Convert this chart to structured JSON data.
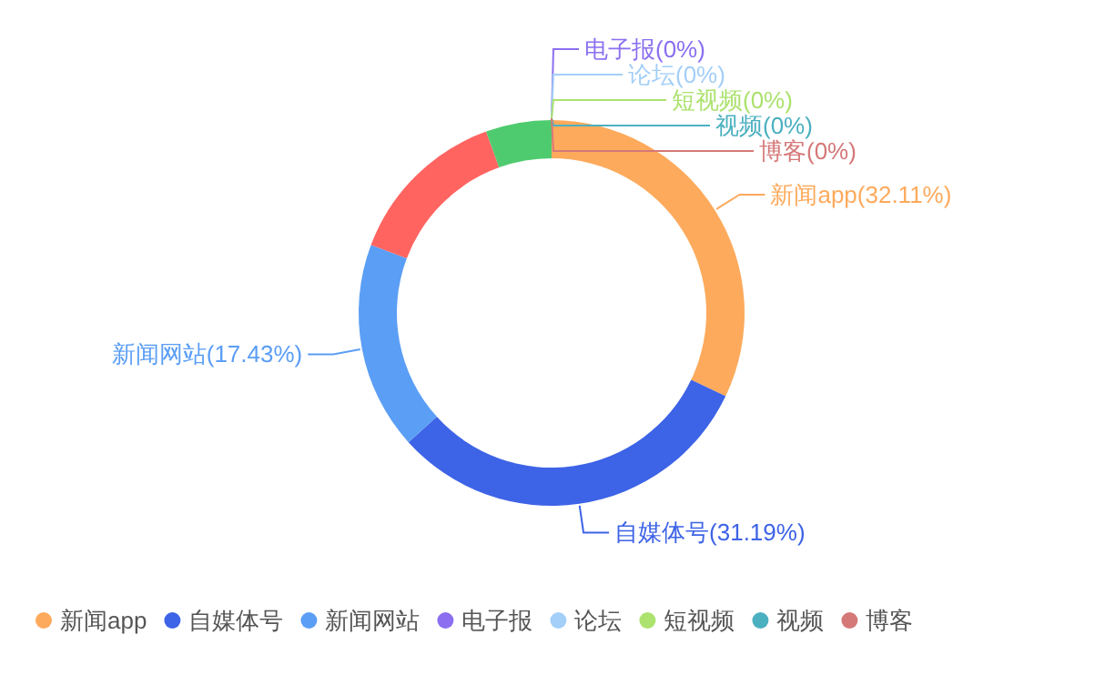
{
  "chart_data": {
    "type": "donut",
    "categories": [
      "新闻app",
      "自媒体号",
      "新闻网站",
      null,
      null,
      "电子报",
      "论坛",
      "短视频",
      "视频",
      "博客"
    ],
    "values": [
      32.11,
      31.19,
      17.43,
      13.76,
      5.51,
      0,
      0,
      0,
      0,
      0
    ],
    "colors": [
      "#fdaa5c",
      "#3d63e6",
      "#5b9ef5",
      "#ff6461",
      "#4fcb6f",
      "#8b6ff0",
      "#a3cff8",
      "#ace26e",
      "#4bb0c0",
      "#d57878"
    ],
    "value_labels": [
      "新闻app(32.11%)",
      "自媒体号(31.19%)",
      "新闻网站(17.43%)",
      null,
      null,
      "电子报(0%)",
      "论坛(0%)",
      "短视频(0%)",
      "视频(0%)",
      "博客(0%)"
    ],
    "legend": "bottom"
  }
}
